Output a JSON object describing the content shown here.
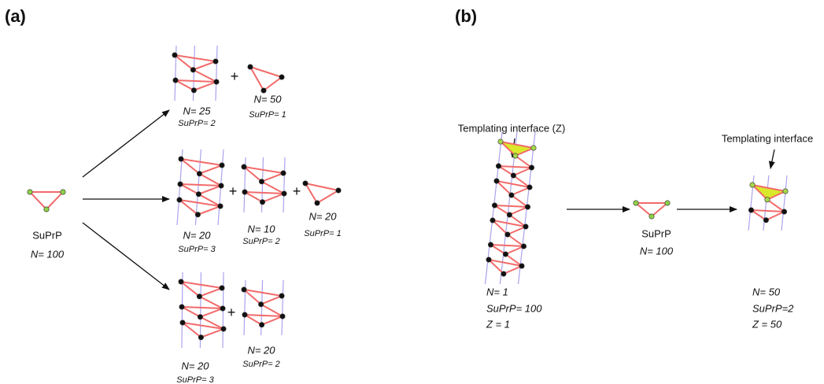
{
  "operator": "+",
  "panel_a": {
    "label": "(a)",
    "source": {
      "name": "SuPrP",
      "n": "N= 100"
    },
    "rows": [
      [
        {
          "n": "N= 25",
          "suprp": "SuPrP= 2"
        },
        {
          "n": "N= 50",
          "suprp": "SuPrP= 1"
        }
      ],
      [
        {
          "n": "N= 20",
          "suprp": "SuPrP= 3"
        },
        {
          "n": "N= 10",
          "suprp": "SuPrP= 2"
        },
        {
          "n": "N= 20",
          "suprp": "SuPrP= 1"
        }
      ],
      [
        {
          "n": "N= 20",
          "suprp": "SuPrP= 3"
        },
        {
          "n": "N= 20",
          "suprp": "SuPrP= 2"
        }
      ]
    ]
  },
  "panel_b": {
    "label": "(b)",
    "initial": {
      "annotation": "Templating interface (Z)",
      "n": "N= 1",
      "suprp": "SuPrP= 100",
      "z": "Z = 1"
    },
    "source": {
      "name": "SuPrP",
      "n": "N= 100"
    },
    "result": {
      "annotation": "Templating interface",
      "n": "N= 50",
      "suprp": "SuPrP=2",
      "z": "Z = 50"
    }
  }
}
